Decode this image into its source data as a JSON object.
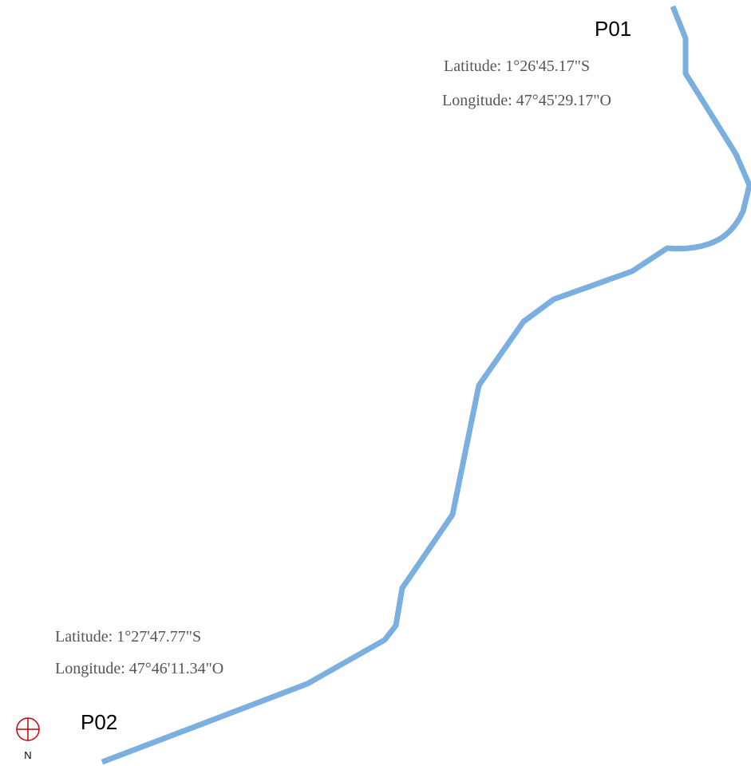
{
  "points": [
    {
      "label": "P01",
      "latitude": "Latitude: 1°26'45.17\"S",
      "longitude": "Longitude: 47°45'29.17\"O"
    },
    {
      "label": "P02",
      "latitude": "Latitude: 1°27'47.77\"S",
      "longitude": "Longitude: 47°46'11.34\"O"
    }
  ],
  "compass": "N"
}
